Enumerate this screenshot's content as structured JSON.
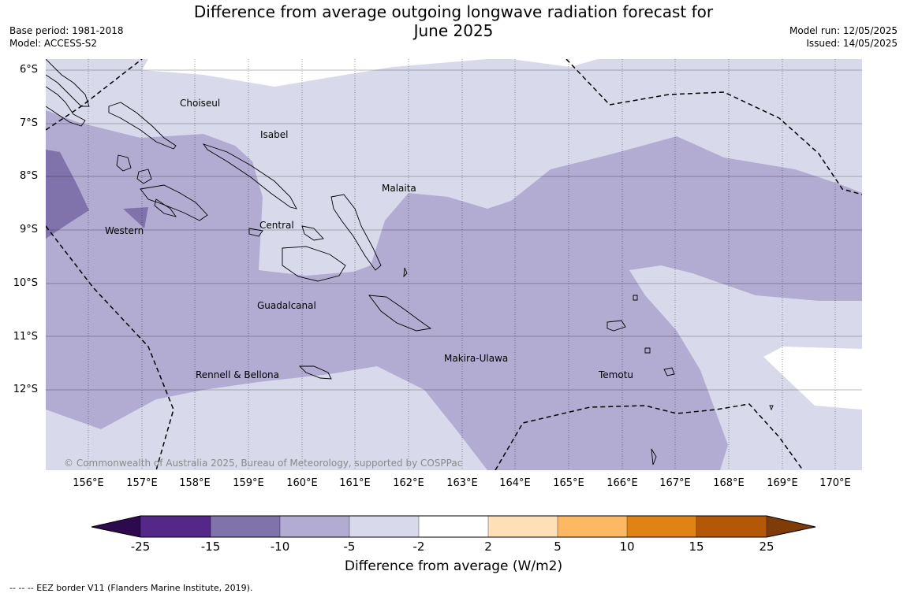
{
  "title": "Difference from average outgoing longwave radiation forecast for\nJune 2025",
  "title_line1": "Difference from average outgoing longwave radiation forecast for",
  "title_line2": "June 2025",
  "base_period": "Base period: 1981-2018",
  "model": "Model: ACCESS-S2",
  "model_run": "Model run: 12/05/2025",
  "issued": "Issued: 14/05/2025",
  "latitudes": [
    "6°S",
    "7°S",
    "8°S",
    "9°S",
    "10°S",
    "11°S",
    "12°S"
  ],
  "longitudes": [
    "156°E",
    "157°E",
    "158°E",
    "159°E",
    "160°E",
    "161°E",
    "162°E",
    "163°E",
    "164°E",
    "165°E",
    "166°E",
    "167°E",
    "168°E",
    "169°E",
    "170°E"
  ],
  "regions": {
    "choiseul": "Choiseul",
    "isabel": "Isabel",
    "malaita": "Malaita",
    "western": "Western",
    "central": "Central",
    "guadalcanal": "Guadalcanal",
    "makira": "Makira-Ulawa",
    "rennell": "Rennell & Bellona",
    "temotu": "Temotu"
  },
  "copyright": "© Commonwealth of Australia 2025, Bureau of Meteorology, supported by COSPPac",
  "colorbar": {
    "ticks": [
      "-25",
      "-15",
      "-10",
      "-5",
      "-2",
      "2",
      "5",
      "10",
      "15",
      "25"
    ],
    "colors": [
      "#2d0a4e",
      "#542788",
      "#8073ac",
      "#b2abd2",
      "#d8daeb",
      "#ffffff",
      "#fee0b6",
      "#fdb863",
      "#e08214",
      "#b35806",
      "#7f3b08"
    ],
    "label": "Difference from average (W/m2)"
  },
  "footnote": "--  --  -- EEZ border V11 (Flanders Marine Institute, 2019)."
}
